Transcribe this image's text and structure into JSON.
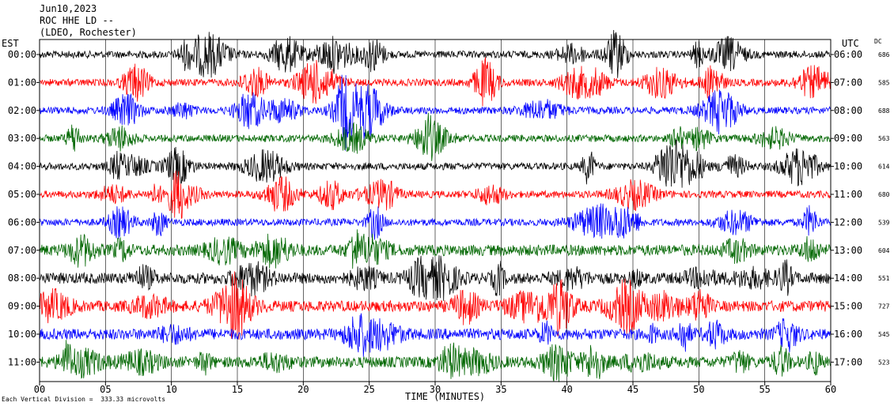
{
  "header": {
    "date": "Jun10,2023",
    "station": "ROC HHE LD --",
    "network": "(LDEO, Rochester)"
  },
  "left_axis_title": "EST",
  "right_axis_title": "UTC",
  "dc_title": "DC",
  "footer": "Each Vertical Division =  333.33 microvolts",
  "colors": {
    "black": "#000000",
    "red": "#ff0000",
    "blue": "#0000ff",
    "green": "#006600"
  },
  "chart_data": {
    "type": "line",
    "xlabel": "TIME (MINUTES)",
    "xlim": [
      0,
      60
    ],
    "x_ticks": [
      "00",
      "05",
      "10",
      "15",
      "20",
      "25",
      "30",
      "35",
      "40",
      "45",
      "50",
      "55",
      "60"
    ],
    "grid": true,
    "rows": [
      {
        "est": "00:00",
        "utc": "06:00",
        "dc": "686",
        "color": "#000000"
      },
      {
        "est": "01:00",
        "utc": "07:00",
        "dc": "585",
        "color": "#ff0000"
      },
      {
        "est": "02:00",
        "utc": "08:00",
        "dc": "688",
        "color": "#0000ff"
      },
      {
        "est": "03:00",
        "utc": "09:00",
        "dc": "563",
        "color": "#006600"
      },
      {
        "est": "04:00",
        "utc": "10:00",
        "dc": "614",
        "color": "#000000"
      },
      {
        "est": "05:00",
        "utc": "11:00",
        "dc": "680",
        "color": "#ff0000"
      },
      {
        "est": "06:00",
        "utc": "12:00",
        "dc": "539",
        "color": "#0000ff"
      },
      {
        "est": "07:00",
        "utc": "13:00",
        "dc": "604",
        "color": "#006600"
      },
      {
        "est": "08:00",
        "utc": "14:00",
        "dc": "551",
        "color": "#000000"
      },
      {
        "est": "09:00",
        "utc": "15:00",
        "dc": "727",
        "color": "#ff0000"
      },
      {
        "est": "10:00",
        "utc": "16:00",
        "dc": "545",
        "color": "#0000ff"
      },
      {
        "est": "11:00",
        "utc": "17:00",
        "dc": "523",
        "color": "#006600"
      }
    ]
  }
}
